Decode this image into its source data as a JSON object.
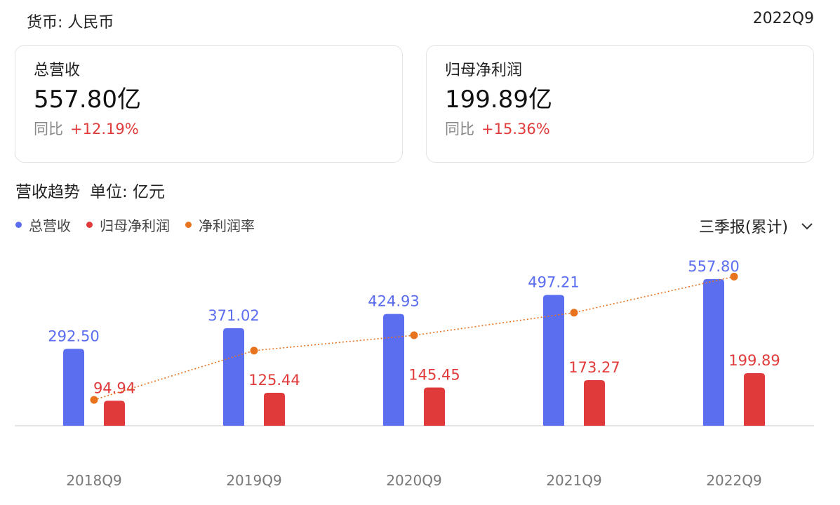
{
  "header": {
    "currency_label": "货币: 人民币",
    "period": "2022Q9"
  },
  "cards": [
    {
      "label": "总营收",
      "value": "557.80亿",
      "yoy_label": "同比",
      "yoy": "+12.19%"
    },
    {
      "label": "归母净利润",
      "value": "199.89亿",
      "yoy_label": "同比",
      "yoy": "+15.36%"
    }
  ],
  "section": {
    "title": "营收趋势",
    "unit": "单位: 亿元"
  },
  "selector": {
    "label": "三季报(累计)",
    "icon": "chevron-down-icon"
  },
  "colors": {
    "revenue": "#5b6ef0",
    "net_profit": "#e03a3a",
    "net_margin": "#e7731f",
    "yoy_up": "#e03a3a"
  },
  "chart_data": {
    "type": "bar",
    "categories": [
      "2018Q9",
      "2019Q9",
      "2020Q9",
      "2021Q9",
      "2022Q9"
    ],
    "series": [
      {
        "name": "总营收",
        "type": "bar",
        "values": [
          292.5,
          371.02,
          424.93,
          497.21,
          557.8
        ],
        "labels": [
          "292.50",
          "371.02",
          "424.93",
          "497.21",
          "557.80"
        ]
      },
      {
        "name": "归母净利润",
        "type": "bar",
        "values": [
          94.94,
          125.44,
          145.45,
          173.27,
          199.89
        ],
        "labels": [
          "94.94",
          "125.44",
          "145.45",
          "173.27",
          "199.89"
        ]
      },
      {
        "name": "净利润率",
        "type": "line",
        "style": "dotted",
        "values": [
          32.46,
          33.81,
          34.23,
          34.85,
          35.84
        ]
      }
    ],
    "ylim": [
      0,
      600
    ],
    "line_ylim": [
      32,
      36
    ],
    "legend_position": "top-left",
    "grid": false
  }
}
